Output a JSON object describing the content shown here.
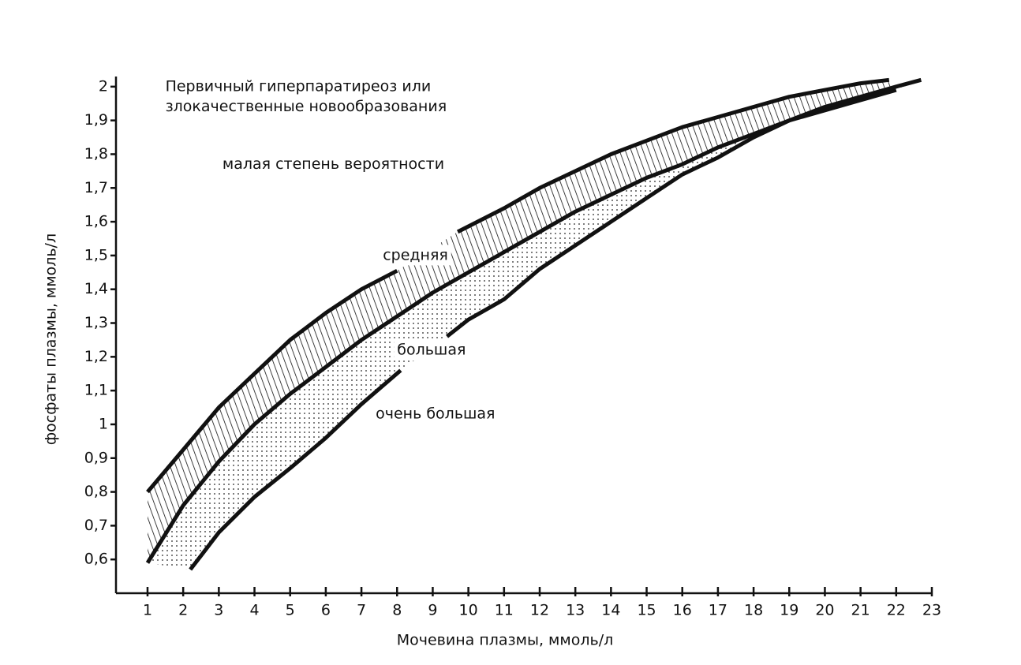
{
  "chart_data": {
    "type": "line",
    "xlabel": "Мочевина плазмы, ммоль/л",
    "ylabel": "фосфаты плазмы, ммоль/л",
    "annotations": [
      {
        "text": "Первичный гиперпаратиреоз или",
        "x": 1.5,
        "y": 2.0
      },
      {
        "text": "злокачественные новообразования",
        "x": 1.5,
        "y": 1.94
      },
      {
        "text": "малая степень вероятности",
        "x": 3.1,
        "y": 1.77
      },
      {
        "text": "средняя",
        "x": 7.6,
        "y": 1.5
      },
      {
        "text": "большая",
        "x": 8,
        "y": 1.22
      },
      {
        "text": "очень большая",
        "x": 7.4,
        "y": 1.03
      }
    ],
    "xlim": [
      0.115,
      23
    ],
    "ylim": [
      0.5,
      2.03
    ],
    "xticks": [
      1,
      2,
      3,
      4,
      5,
      6,
      7,
      8,
      9,
      10,
      11,
      12,
      13,
      14,
      15,
      16,
      17,
      18,
      19,
      20,
      21,
      22,
      23
    ],
    "yticks": [
      {
        "value": 0.6,
        "label": "0,6"
      },
      {
        "value": 0.7,
        "label": "0,7"
      },
      {
        "value": 0.8,
        "label": "0,8"
      },
      {
        "value": 0.9,
        "label": "0,9"
      },
      1,
      {
        "value": 1.1,
        "label": "1,1"
      },
      {
        "value": 1.2,
        "label": "1,2"
      },
      {
        "value": 1.3,
        "label": "1,3"
      },
      {
        "value": 1.4,
        "label": "1,4"
      },
      {
        "value": 1.5,
        "label": "1,5"
      },
      {
        "value": 1.6,
        "label": "1,6"
      },
      {
        "value": 1.7,
        "label": "1,7"
      },
      {
        "value": 1.8,
        "label": "1,8"
      },
      {
        "value": 1.9,
        "label": "1,9"
      },
      2
    ],
    "series": [
      {
        "color": "#111",
        "x": [
          1,
          2,
          3,
          4,
          5,
          6,
          7,
          8,
          9,
          9.7,
          11,
          12,
          13,
          14,
          15,
          16,
          17,
          18,
          19,
          20,
          21,
          21.8
        ],
        "values": [
          0.8,
          0.925,
          1.05,
          1.15,
          1.25,
          1.33,
          1.4,
          1.455,
          null,
          1.57,
          1.64,
          1.7,
          1.75,
          1.8,
          1.84,
          1.88,
          1.91,
          1.94,
          1.97,
          1.99,
          2.01,
          2.02
        ]
      },
      {
        "color": "#111",
        "x": [
          1,
          2,
          3,
          4,
          5,
          6,
          7,
          8,
          9,
          10,
          11,
          12,
          13,
          14,
          15,
          16,
          17,
          18,
          19,
          20,
          21,
          22
        ],
        "values": [
          0.59,
          0.76,
          0.89,
          1.0,
          1.09,
          1.17,
          1.25,
          1.32,
          1.39,
          1.45,
          1.51,
          1.57,
          1.63,
          1.68,
          1.73,
          1.77,
          1.82,
          1.86,
          1.9,
          1.93,
          1.96,
          1.99
        ]
      },
      {
        "color": "#111",
        "x": [
          2.2,
          3,
          4,
          5,
          6,
          7,
          8.1,
          9,
          9.4,
          10,
          11,
          12,
          13,
          14,
          15,
          16,
          17,
          18,
          19,
          20,
          21,
          22,
          22.7
        ],
        "values": [
          0.57,
          0.68,
          0.785,
          0.87,
          0.96,
          1.06,
          1.16,
          null,
          1.26,
          1.31,
          1.37,
          1.46,
          1.53,
          1.6,
          1.67,
          1.74,
          1.79,
          1.85,
          1.9,
          1.94,
          1.97,
          2.0,
          2.02
        ]
      }
    ]
  }
}
